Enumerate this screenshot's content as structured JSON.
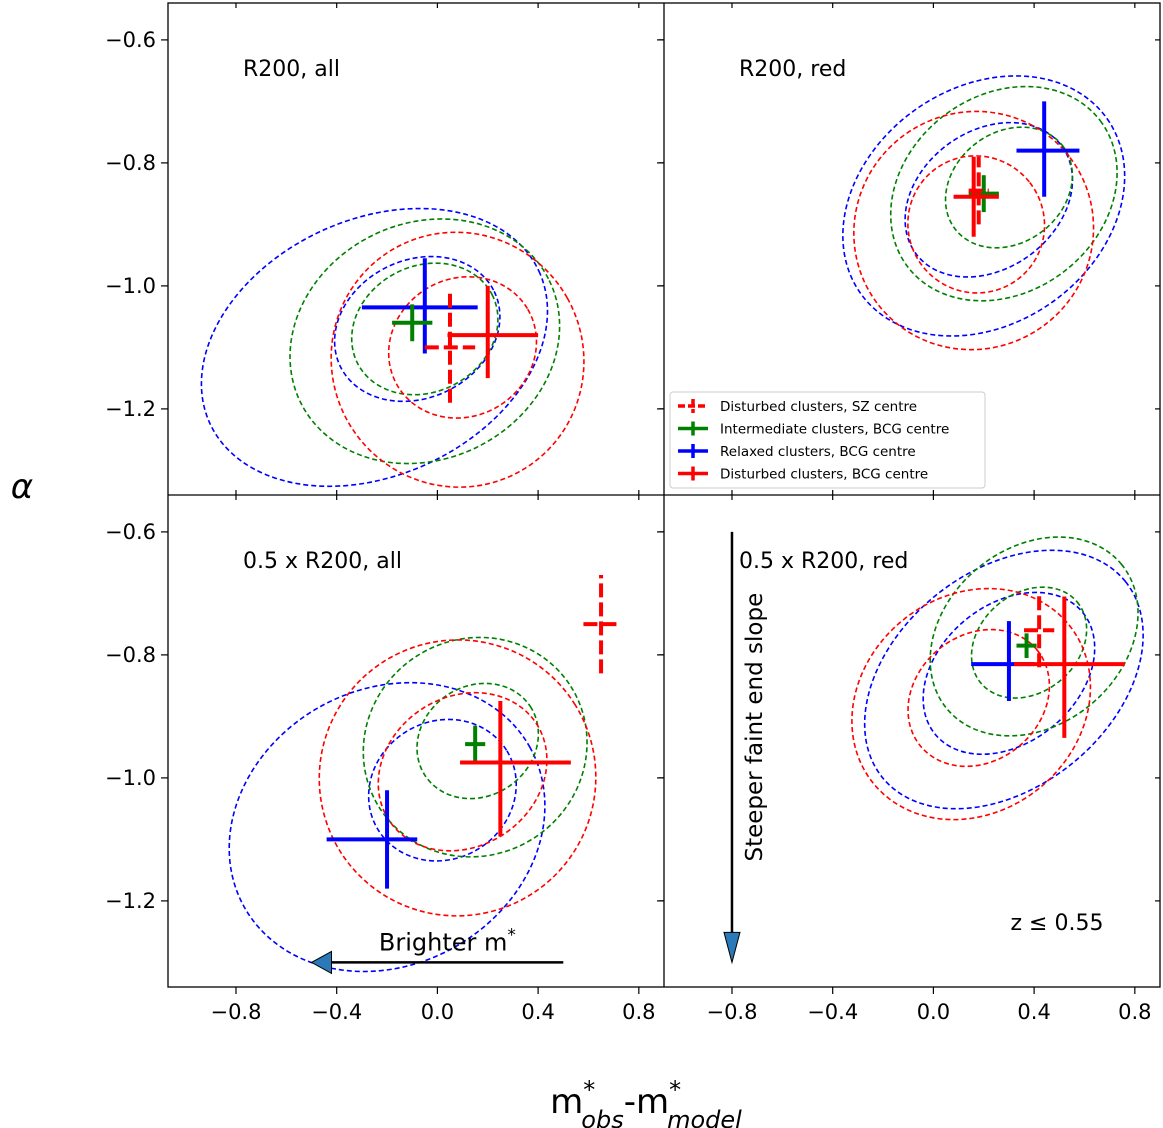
{
  "chart_data": {
    "type": "scatter",
    "xlabel": {
      "base": "m",
      "sup": "*",
      "sub1": "obs",
      "sep": "-",
      "base2": "m",
      "sup2": "*",
      "sub2": "model"
    },
    "ylabel": "α",
    "xlim": [
      -1.07,
      0.9
    ],
    "ylim": [
      -1.34,
      -0.54
    ],
    "xticks": [
      -0.8,
      -0.4,
      0.0,
      0.4,
      0.8
    ],
    "xtick_labels": [
      "−0.8",
      "−0.4",
      "0.0",
      "0.4",
      "0.8"
    ],
    "yticks": [
      -1.2,
      -1.0,
      -0.8,
      -0.6
    ],
    "ytick_labels": [
      "−1.2",
      "−1.0",
      "−0.8",
      "−0.6"
    ],
    "colors": {
      "disturbed": "#ff0000",
      "intermediate": "#008000",
      "relaxed": "#0000ff"
    },
    "legend": {
      "location": "lower-left of top-right panel",
      "entries": [
        {
          "label": "Disturbed clusters, SZ centre",
          "color": "#ff0000",
          "style": "dashed"
        },
        {
          "label": "Intermediate clusters, BCG centre",
          "color": "#008000",
          "style": "solid"
        },
        {
          "label": "Relaxed clusters, BCG centre",
          "color": "#0000ff",
          "style": "solid"
        },
        {
          "label": "Disturbed clusters, BCG centre",
          "color": "#ff0000",
          "style": "solid"
        }
      ]
    },
    "panels": [
      {
        "id": "r200-all",
        "label": "R200, all",
        "points": [
          {
            "group": "relaxed",
            "x": -0.05,
            "y": -1.035,
            "xerr": [
              0.25,
              0.21
            ],
            "yerr": [
              0.075,
              0.08
            ],
            "dashed": false
          },
          {
            "group": "intermediate",
            "x": -0.1,
            "y": -1.06,
            "xerr": [
              0.08,
              0.08
            ],
            "yerr": [
              0.03,
              0.03
            ],
            "dashed": false
          },
          {
            "group": "disturbed",
            "x": 0.05,
            "y": -1.1,
            "xerr": [
              0.1,
              0.1
            ],
            "yerr": [
              0.09,
              0.09
            ],
            "dashed": true
          },
          {
            "group": "disturbed",
            "x": 0.2,
            "y": -1.08,
            "xerr": [
              0.16,
              0.2
            ],
            "yerr": [
              0.07,
              0.08
            ],
            "dashed": false
          }
        ],
        "contours": [
          {
            "group": "relaxed",
            "cx": -0.25,
            "cy": -1.1,
            "rx": 0.72,
            "ry": 0.065,
            "angle": 0.19
          },
          {
            "group": "relaxed",
            "cx": -0.08,
            "cy": -1.07,
            "rx": 0.34,
            "ry": 0.035,
            "angle": 0.2
          },
          {
            "group": "intermediate",
            "cx": -0.05,
            "cy": -1.09,
            "rx": 0.55,
            "ry": 0.06,
            "angle": 0.2
          },
          {
            "group": "intermediate",
            "cx": -0.05,
            "cy": -1.07,
            "rx": 0.3,
            "ry": 0.032,
            "angle": 0.21
          },
          {
            "group": "disturbed",
            "cx": 0.08,
            "cy": -1.12,
            "rx": 0.5,
            "ry": 0.065,
            "angle": 0.23
          },
          {
            "group": "disturbed",
            "cx": 0.1,
            "cy": -1.1,
            "rx": 0.3,
            "ry": 0.035,
            "angle": 0.24
          }
        ]
      },
      {
        "id": "r200-red",
        "label": "R200, red",
        "points": [
          {
            "group": "relaxed",
            "x": 0.44,
            "y": -0.78,
            "xerr": [
              0.11,
              0.14
            ],
            "yerr": [
              0.075,
              0.08
            ],
            "dashed": false
          },
          {
            "group": "intermediate",
            "x": 0.2,
            "y": -0.85,
            "xerr": [
              0.06,
              0.06
            ],
            "yerr": [
              0.03,
              0.03
            ],
            "dashed": false
          },
          {
            "group": "disturbed",
            "x": 0.18,
            "y": -0.845,
            "xerr": [
              0.04,
              0.04
            ],
            "yerr": [
              0.055,
              0.055
            ],
            "dashed": true
          },
          {
            "group": "disturbed",
            "x": 0.16,
            "y": -0.855,
            "xerr": [
              0.08,
              0.1
            ],
            "yerr": [
              0.065,
              0.065
            ],
            "dashed": false
          }
        ],
        "contours": [
          {
            "group": "relaxed",
            "cx": 0.2,
            "cy": -0.87,
            "rx": 0.6,
            "ry": 0.06,
            "angle": 0.29
          },
          {
            "group": "relaxed",
            "cx": 0.22,
            "cy": -0.86,
            "rx": 0.36,
            "ry": 0.035,
            "angle": 0.3
          },
          {
            "group": "intermediate",
            "cx": 0.28,
            "cy": -0.85,
            "rx": 0.48,
            "ry": 0.05,
            "angle": 0.31
          },
          {
            "group": "intermediate",
            "cx": 0.3,
            "cy": -0.84,
            "rx": 0.27,
            "ry": 0.028,
            "angle": 0.32
          },
          {
            "group": "disturbed",
            "cx": 0.16,
            "cy": -0.91,
            "rx": 0.48,
            "ry": 0.06,
            "angle": 0.31
          },
          {
            "group": "disturbed",
            "cx": 0.17,
            "cy": -0.9,
            "rx": 0.27,
            "ry": 0.035,
            "angle": 0.32
          }
        ]
      },
      {
        "id": "half-r200-all",
        "label": "0.5 x R200, all",
        "points": [
          {
            "group": "relaxed",
            "x": -0.2,
            "y": -1.1,
            "xerr": [
              0.24,
              0.12
            ],
            "yerr": [
              0.08,
              0.08
            ],
            "dashed": false
          },
          {
            "group": "intermediate",
            "x": 0.15,
            "y": -0.945,
            "xerr": [
              0.04,
              0.04
            ],
            "yerr": [
              0.03,
              0.03
            ],
            "dashed": false
          },
          {
            "group": "disturbed",
            "x": 0.65,
            "y": -0.75,
            "xerr": [
              0.07,
              0.07
            ],
            "yerr": [
              0.08,
              0.08
            ],
            "dashed": true
          },
          {
            "group": "disturbed",
            "x": 0.25,
            "y": -0.975,
            "xerr": [
              0.16,
              0.28
            ],
            "yerr": [
              0.12,
              0.1
            ],
            "dashed": false
          }
        ],
        "contours": [
          {
            "group": "relaxed",
            "cx": -0.2,
            "cy": -1.08,
            "rx": 0.65,
            "ry": 0.07,
            "angle": 0.23
          },
          {
            "group": "relaxed",
            "cx": 0.02,
            "cy": -1.02,
            "rx": 0.3,
            "ry": 0.035,
            "angle": 0.25
          },
          {
            "group": "intermediate",
            "cx": 0.15,
            "cy": -0.95,
            "rx": 0.45,
            "ry": 0.055,
            "angle": 0.26
          },
          {
            "group": "intermediate",
            "cx": 0.16,
            "cy": -0.94,
            "rx": 0.25,
            "ry": 0.028,
            "angle": 0.27
          },
          {
            "group": "disturbed",
            "cx": 0.08,
            "cy": -1.0,
            "rx": 0.55,
            "ry": 0.07,
            "angle": 0.26
          },
          {
            "group": "disturbed",
            "cx": 0.1,
            "cy": -0.99,
            "rx": 0.35,
            "ry": 0.038,
            "angle": 0.27
          }
        ]
      },
      {
        "id": "half-r200-red",
        "label": "0.5 x R200, red",
        "points": [
          {
            "group": "relaxed",
            "x": 0.3,
            "y": -0.815,
            "xerr": [
              0.15,
              0.1
            ],
            "yerr": [
              0.06,
              0.07
            ],
            "dashed": false
          },
          {
            "group": "intermediate",
            "x": 0.37,
            "y": -0.785,
            "xerr": [
              0.04,
              0.04
            ],
            "yerr": [
              0.02,
              0.02
            ],
            "dashed": false
          },
          {
            "group": "disturbed",
            "x": 0.42,
            "y": -0.76,
            "xerr": [
              0.06,
              0.06
            ],
            "yerr": [
              0.06,
              0.06
            ],
            "dashed": true
          },
          {
            "group": "disturbed",
            "x": 0.52,
            "y": -0.815,
            "xerr": [
              0.2,
              0.24
            ],
            "yerr": [
              0.12,
              0.11
            ],
            "dashed": false
          }
        ],
        "contours": [
          {
            "group": "relaxed",
            "cx": 0.28,
            "cy": -0.84,
            "rx": 0.62,
            "ry": 0.055,
            "angle": 0.33
          },
          {
            "group": "relaxed",
            "cx": 0.3,
            "cy": -0.83,
            "rx": 0.38,
            "ry": 0.035,
            "angle": 0.34
          },
          {
            "group": "intermediate",
            "cx": 0.4,
            "cy": -0.77,
            "rx": 0.45,
            "ry": 0.045,
            "angle": 0.34
          },
          {
            "group": "intermediate",
            "cx": 0.38,
            "cy": -0.78,
            "rx": 0.25,
            "ry": 0.025,
            "angle": 0.35
          },
          {
            "group": "disturbed",
            "cx": 0.15,
            "cy": -0.88,
            "rx": 0.5,
            "ry": 0.055,
            "angle": 0.33
          },
          {
            "group": "disturbed",
            "cx": 0.18,
            "cy": -0.87,
            "rx": 0.3,
            "ry": 0.032,
            "angle": 0.34
          }
        ]
      }
    ],
    "annotations": {
      "brighter": {
        "text": "Brighter m",
        "sup": "*",
        "from_x": 0.5,
        "to_x": -0.5,
        "y": -1.3
      },
      "steeper": {
        "text": "Steeper faint end slope",
        "x": -0.8,
        "from_y": -0.6,
        "to_y": -1.3
      },
      "redshift": {
        "text": "z ≤ 0.55"
      }
    }
  }
}
